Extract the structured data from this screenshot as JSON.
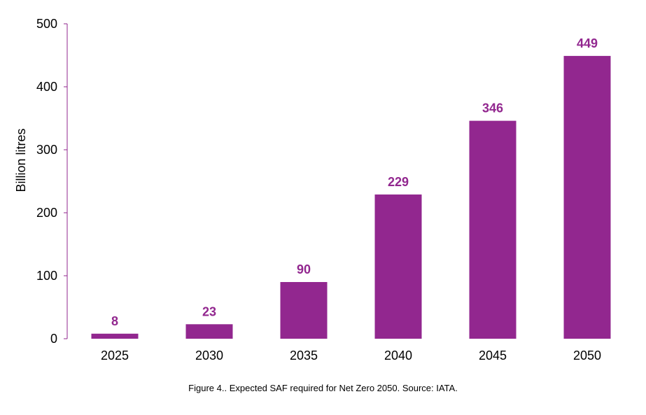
{
  "chart_data": {
    "type": "bar",
    "categories": [
      "2025",
      "2030",
      "2035",
      "2040",
      "2045",
      "2050"
    ],
    "values": [
      8,
      23,
      90,
      229,
      346,
      449
    ],
    "data_labels": [
      "8",
      "23",
      "90",
      "229",
      "346",
      "449"
    ],
    "ylabel": "Billion litres",
    "xlabel": "",
    "ylim": [
      0,
      500
    ],
    "yticks": [
      "0",
      "100",
      "200",
      "300",
      "400",
      "500"
    ],
    "grid": false,
    "legend": "none",
    "bar_color": "#92278f",
    "axis_color": "#92278f",
    "label_color": "#92278f"
  },
  "caption": "Figure 4.. Expected SAF required for Net Zero 2050. Source: IATA."
}
